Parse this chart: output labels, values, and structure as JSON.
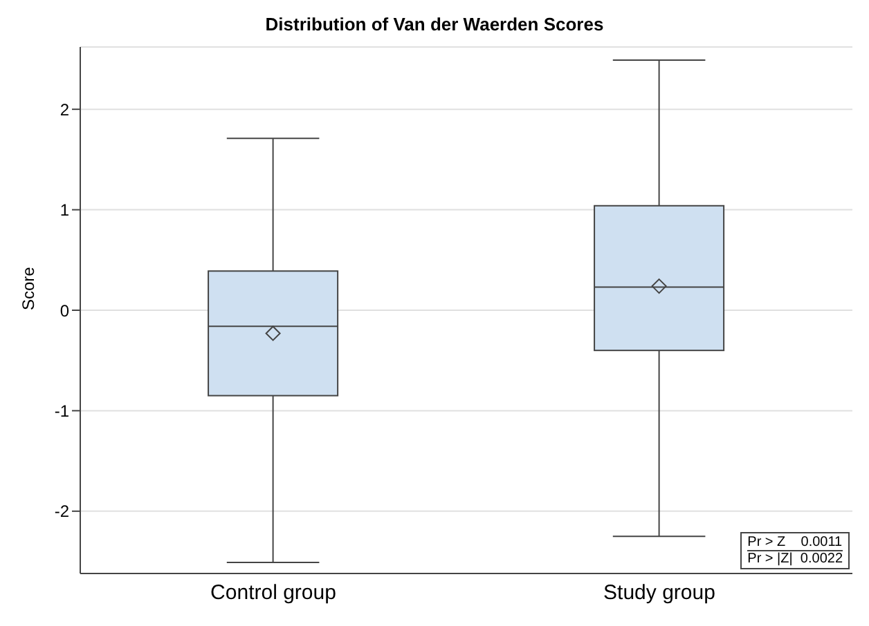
{
  "chart_data": {
    "type": "box",
    "title": "Distribution of Van der Waerden Scores",
    "ylabel": "Score",
    "categories": [
      "Control group",
      "Study group"
    ],
    "boxes": [
      {
        "low": -2.51,
        "q1": -0.85,
        "median": -0.16,
        "q3": 0.39,
        "high": 1.71,
        "mean": -0.23
      },
      {
        "low": -2.25,
        "q1": -0.4,
        "median": 0.23,
        "q3": 1.04,
        "high": 2.49,
        "mean": 0.24
      }
    ],
    "color": "#cfe0f1",
    "ylim": [
      -2.62,
      2.62
    ],
    "yticks": [
      -2,
      -1,
      0,
      1,
      2
    ],
    "grid": "y",
    "annotations": [
      "Pr > Z    0.0011",
      "Pr > |Z|  0.0022"
    ]
  }
}
